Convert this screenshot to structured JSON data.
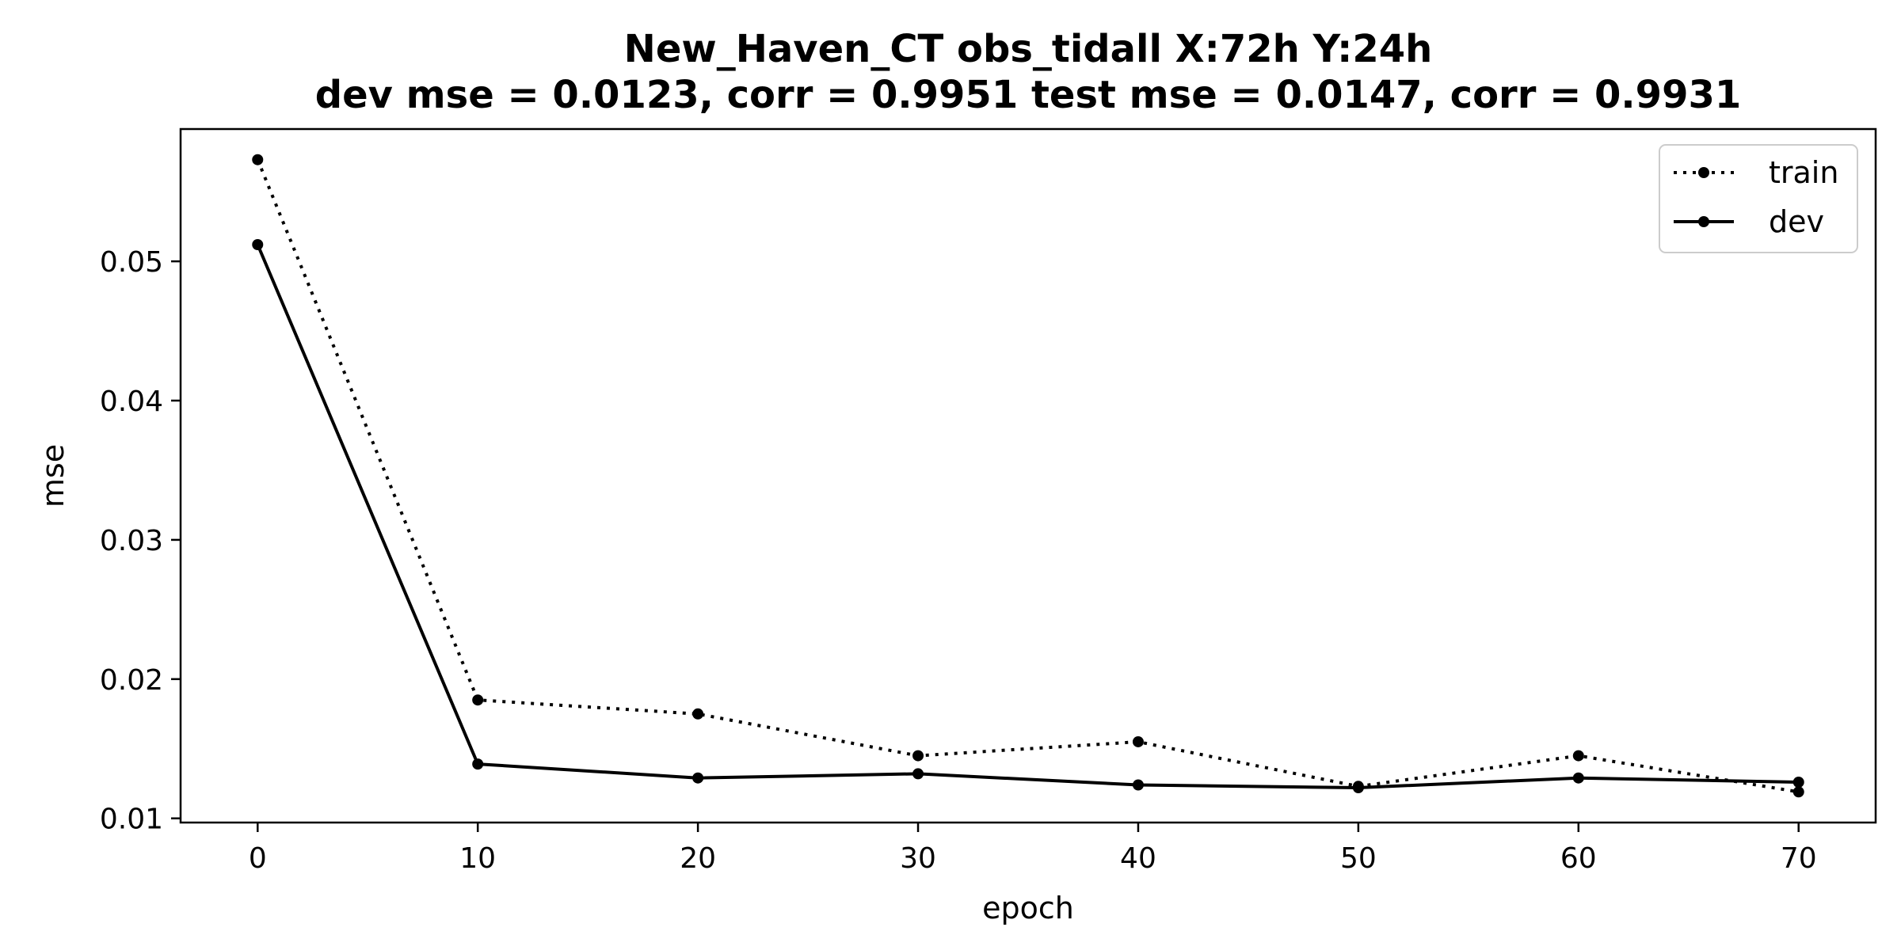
{
  "chart_data": {
    "type": "line",
    "title_line1": "New_Haven_CT   obs_tidall   X:72h   Y:24h",
    "title_line2": "dev mse = 0.0123, corr = 0.9951   test mse = 0.0147, corr = 0.9931",
    "xlabel": "epoch",
    "ylabel": "mse",
    "x": [
      0,
      10,
      20,
      30,
      40,
      50,
      60,
      70
    ],
    "xlim": [
      -3.5,
      73.5
    ],
    "ylim": [
      0.0097,
      0.0595
    ],
    "xticks": [
      0,
      10,
      20,
      30,
      40,
      50,
      60,
      70
    ],
    "yticks": [
      0.01,
      0.02,
      0.03,
      0.04,
      0.05
    ],
    "ytick_labels": [
      "0.01",
      "0.02",
      "0.03",
      "0.04",
      "0.05"
    ],
    "grid": false,
    "legend_position": "top-right",
    "series": [
      {
        "name": "train",
        "style": "dotted",
        "color": "#000000",
        "values": [
          0.0573,
          0.0185,
          0.0175,
          0.0145,
          0.0155,
          0.0123,
          0.0145,
          0.0119
        ]
      },
      {
        "name": "dev",
        "style": "solid",
        "color": "#000000",
        "values": [
          0.0512,
          0.0139,
          0.0129,
          0.0132,
          0.0124,
          0.0122,
          0.0129,
          0.0126
        ]
      }
    ]
  }
}
